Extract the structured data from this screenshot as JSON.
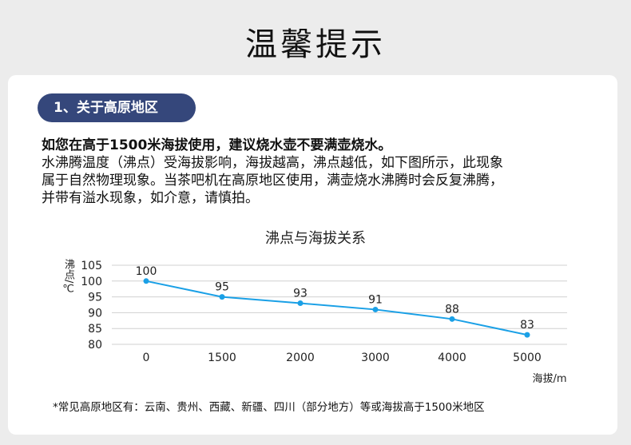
{
  "header": {
    "title": "温馨提示"
  },
  "section": {
    "label": "1、关于高原地区",
    "highlight": "如您在高于1500米海拔使用，建议烧水壶不要满壶烧水。",
    "lines": [
      "水沸腾温度（沸点）受海拔影响，海拔越高，沸点越低，如下图所示，此现象",
      "属于自然物理现象。当茶吧机在高原地区使用，满壶烧水沸腾时会反复沸腾，",
      "并带有溢水现象，如介意，请慎拍。"
    ]
  },
  "chart_data": {
    "type": "line",
    "title": "沸点与海拔关系",
    "xlabel": "海拔/m",
    "ylabel": "沸点/℃",
    "categories": [
      "0",
      "1500",
      "2000",
      "3000",
      "4000",
      "5000"
    ],
    "values": [
      100,
      95,
      93,
      91,
      88,
      83
    ],
    "data_labels": [
      "100",
      "95",
      "93",
      "91",
      "88",
      "83"
    ],
    "ylim": [
      80,
      105
    ],
    "yticks": [
      "80",
      "85",
      "90",
      "95",
      "100",
      "105"
    ],
    "grid": true,
    "color": "#1aa0e6"
  },
  "footnote": "*常见高原地区有：云南、贵州、西藏、新疆、四川（部分地方）等或海拔高于1500米地区"
}
